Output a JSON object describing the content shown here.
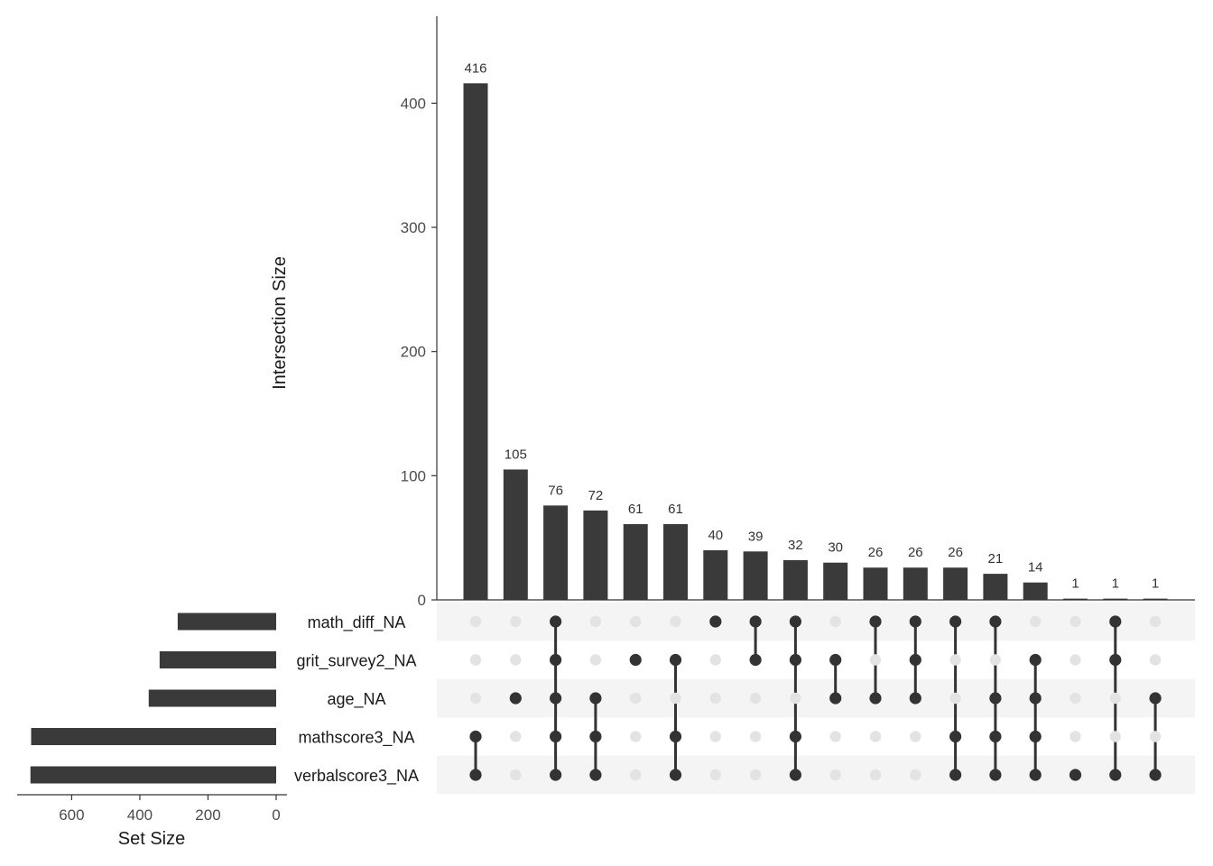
{
  "chart_data": {
    "type": "bar",
    "subtype": "upset",
    "ylabel": "Intersection Size",
    "ylim": [
      0,
      470
    ],
    "yticks": [
      0,
      100,
      200,
      300,
      400
    ],
    "sets": [
      "math_diff_NA",
      "grit_survey2_NA",
      "age_NA",
      "mathscore3_NA",
      "verbalscore3_NA"
    ],
    "set_sizes": [
      289,
      342,
      374,
      719,
      721
    ],
    "set_size_label": "Set Size",
    "set_size_ticks": [
      600,
      400,
      200,
      0
    ],
    "set_size_xlim": [
      0,
      760
    ],
    "intersections": [
      {
        "value": 416,
        "label": "416",
        "members": [
          3,
          4
        ]
      },
      {
        "value": 105,
        "label": "105",
        "members": [
          2
        ]
      },
      {
        "value": 76,
        "label": "76",
        "members": [
          0,
          1,
          2,
          3,
          4
        ]
      },
      {
        "value": 72,
        "label": "72",
        "members": [
          2,
          3,
          4
        ]
      },
      {
        "value": 61,
        "label": "61",
        "members": [
          1
        ]
      },
      {
        "value": 61,
        "label": "61",
        "members": [
          1,
          3,
          4
        ]
      },
      {
        "value": 40,
        "label": "40",
        "members": [
          0
        ]
      },
      {
        "value": 39,
        "label": "39",
        "members": [
          0,
          1
        ]
      },
      {
        "value": 32,
        "label": "32",
        "members": [
          0,
          1,
          3,
          4
        ]
      },
      {
        "value": 30,
        "label": "30",
        "members": [
          1,
          2
        ]
      },
      {
        "value": 26,
        "label": "26",
        "members": [
          0,
          2
        ]
      },
      {
        "value": 26,
        "label": "26",
        "members": [
          0,
          1,
          2
        ]
      },
      {
        "value": 26,
        "label": "26",
        "members": [
          0,
          3,
          4
        ]
      },
      {
        "value": 21,
        "label": "21",
        "members": [
          0,
          2,
          3,
          4
        ]
      },
      {
        "value": 14,
        "label": "14",
        "members": [
          1,
          2,
          3,
          4
        ]
      },
      {
        "value": 1,
        "label": "1",
        "members": [
          4
        ]
      },
      {
        "value": 1,
        "label": "1",
        "members": [
          0,
          1,
          4
        ]
      },
      {
        "value": 1,
        "label": "1",
        "members": [
          2,
          4
        ]
      }
    ],
    "colors": {
      "bar": "#3a3a3a",
      "dot_active": "#333333",
      "dot_inactive": "#e3e3e3",
      "stripe": "#f4f4f4",
      "axis": "#333333"
    },
    "grid": false
  }
}
